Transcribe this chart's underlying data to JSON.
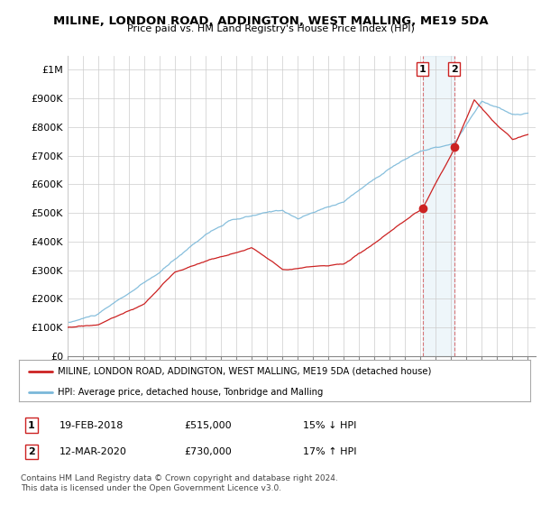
{
  "title": "MILINE, LONDON ROAD, ADDINGTON, WEST MALLING, ME19 5DA",
  "subtitle": "Price paid vs. HM Land Registry's House Price Index (HPI)",
  "ylabel_ticks": [
    "£0",
    "£100K",
    "£200K",
    "£300K",
    "£400K",
    "£500K",
    "£600K",
    "£700K",
    "£800K",
    "£900K",
    "£1M"
  ],
  "ytick_values": [
    0,
    100000,
    200000,
    300000,
    400000,
    500000,
    600000,
    700000,
    800000,
    900000,
    1000000
  ],
  "ylim": [
    0,
    1050000
  ],
  "xlim_start": 1995.0,
  "xlim_end": 2025.5,
  "sale1_date": 2018.13,
  "sale1_price": 515000,
  "sale1_label": "1",
  "sale2_date": 2020.2,
  "sale2_price": 730000,
  "sale2_label": "2",
  "hpi_color": "#7ab8d9",
  "sale_color": "#cc2222",
  "legend_line1": "MILINE, LONDON ROAD, ADDINGTON, WEST MALLING, ME19 5DA (detached house)",
  "legend_line2": "HPI: Average price, detached house, Tonbridge and Malling",
  "table_row1": [
    "1",
    "19-FEB-2018",
    "£515,000",
    "15% ↓ HPI"
  ],
  "table_row2": [
    "2",
    "12-MAR-2020",
    "£730,000",
    "17% ↑ HPI"
  ],
  "footnote": "Contains HM Land Registry data © Crown copyright and database right 2024.\nThis data is licensed under the Open Government Licence v3.0.",
  "background_color": "#ffffff",
  "grid_color": "#cccccc"
}
